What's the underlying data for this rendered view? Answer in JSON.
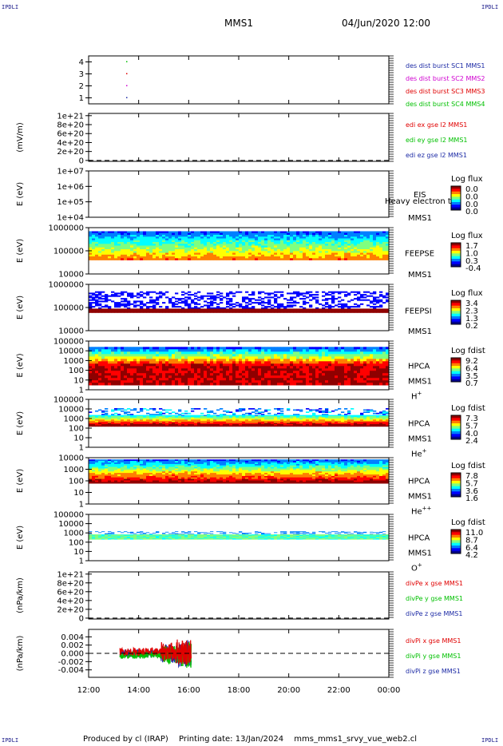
{
  "corners": {
    "tl": "IPDLI",
    "tr": "IPDLI",
    "bl": "IPDLI",
    "br": "IPDLI"
  },
  "header": {
    "spacecraft": "MMS1",
    "datetime": "04/Jun/2020 12:00"
  },
  "footer": {
    "produced_by": "Produced by cl (IRAP)",
    "printing_date": "Printing date: 13/Jan/2024",
    "filename": "mms_mms1_srvy_vue_web2.cl"
  },
  "colors": {
    "blue": "#1c2aa5",
    "magenta": "#d000d0",
    "red": "#e00000",
    "green": "#00c000",
    "grid": "#000000"
  },
  "time_axis": {
    "ticks": [
      "12:00",
      "14:00",
      "16:00",
      "18:00",
      "20:00",
      "22:00",
      "00:00"
    ],
    "range_hours": [
      0,
      12
    ]
  },
  "chart_data": [
    {
      "id": "burst",
      "type": "scatter",
      "ylabel": "",
      "ylim": [
        0.5,
        4.5
      ],
      "yticks": [
        "1",
        "2",
        "3",
        "4"
      ],
      "ytick_values": [
        1,
        2,
        3,
        4
      ],
      "series": [
        {
          "name": "des dist burst SC1 MMS1",
          "color": "#1c2aa5",
          "x": [
            1.5
          ],
          "y": [
            1
          ]
        },
        {
          "name": "des dist burst SC2 MMS2",
          "color": "#d000d0",
          "x": [
            1.5
          ],
          "y": [
            2
          ]
        },
        {
          "name": "des dist burst SC3 MMS3",
          "color": "#e00000",
          "x": [
            1.5
          ],
          "y": [
            3
          ]
        },
        {
          "name": "des dist burst SC4 MMS4",
          "color": "#00c000",
          "x": [
            1.5
          ],
          "y": [
            4
          ]
        }
      ]
    },
    {
      "id": "edi",
      "type": "line",
      "ylabel": "(mV/m)",
      "yticks": [
        "0",
        "2e+20",
        "4e+20",
        "6e+20",
        "8e+20",
        "1e+21"
      ],
      "ytick_values": [
        0,
        2e+20,
        4e+20,
        6e+20,
        8e+20,
        1e+21
      ],
      "ylim": [
        -2e+19,
        1.05e+21
      ],
      "zero_line": true,
      "series": [
        {
          "name": "edi ex gse l2 MMS1",
          "color": "#e00000"
        },
        {
          "name": "edi ey gse l2 MMS1",
          "color": "#00c000"
        },
        {
          "name": "edi ez gse l2 MMS1",
          "color": "#1c2aa5"
        }
      ]
    },
    {
      "id": "eis",
      "type": "heatmap",
      "ylabel": "E (eV)",
      "scale": "log",
      "yticks": [
        "1e+04",
        "1e+05",
        "1e+06",
        "1e+07"
      ],
      "ytick_values": [
        10000,
        100000,
        1000000,
        10000000
      ],
      "ylim": [
        10000,
        10000000
      ],
      "instrument": "EIS",
      "overlap_label": "Heavy electron to",
      "spacecraft": "MMS1",
      "colorbar": {
        "title": "Log flux",
        "values": [
          "0.0",
          "0.0",
          "0.0",
          "0.0"
        ]
      }
    },
    {
      "id": "feepse",
      "type": "heatmap",
      "ylabel": "E (eV)",
      "scale": "log",
      "yticks": [
        "10000",
        "100000",
        "1000000"
      ],
      "ytick_values": [
        10000,
        100000,
        1000000
      ],
      "ylim": [
        10000,
        1000000
      ],
      "instrument": "FEEPSE",
      "spacecraft": "MMS1",
      "data_time_range": [
        0,
        12
      ],
      "data_energy_range": [
        40000,
        700000
      ],
      "colorbar": {
        "title": "Log flux",
        "values": [
          "1.7",
          "1.0",
          "0.3",
          "-0.4"
        ]
      }
    },
    {
      "id": "feepsi",
      "type": "heatmap",
      "ylabel": "E (eV)",
      "scale": "log",
      "yticks": [
        "10000",
        "100000",
        "1000000"
      ],
      "ytick_values": [
        10000,
        100000,
        1000000
      ],
      "ylim": [
        10000,
        1000000
      ],
      "instrument": "FEEPSI",
      "spacecraft": "MMS1",
      "data_time_range": [
        0,
        12
      ],
      "data_energy_range": [
        60000,
        500000
      ],
      "colorbar": {
        "title": "Log flux",
        "values": [
          "3.4",
          "2.3",
          "1.3",
          "0.2"
        ]
      }
    },
    {
      "id": "hpca_h",
      "type": "heatmap",
      "ylabel": "E (eV)",
      "scale": "log",
      "yticks": [
        "1",
        "10",
        "100",
        "1000",
        "10000",
        "100000"
      ],
      "ytick_values": [
        1,
        10,
        100,
        1000,
        10000,
        100000
      ],
      "ylim": [
        1,
        100000
      ],
      "instrument": "HPCA",
      "spacecraft": "MMS1",
      "species": "H",
      "species_charge": "+",
      "data_time_range": [
        0,
        12
      ],
      "data_energy_range": [
        3,
        25000
      ],
      "colorbar": {
        "title": "Log fdist",
        "values": [
          "9.2",
          "6.4",
          "3.5",
          "0.7"
        ]
      }
    },
    {
      "id": "hpca_he",
      "type": "heatmap",
      "ylabel": "E (eV)",
      "scale": "log",
      "yticks": [
        "1",
        "10",
        "100",
        "1000",
        "10000",
        "100000"
      ],
      "ytick_values": [
        1,
        10,
        100,
        1000,
        10000,
        100000
      ],
      "ylim": [
        1,
        100000
      ],
      "instrument": "HPCA",
      "spacecraft": "MMS1",
      "species": "He",
      "species_charge": "+",
      "data_time_range": [
        0,
        12
      ],
      "data_energy_range": [
        150,
        12000
      ],
      "colorbar": {
        "title": "Log fdist",
        "values": [
          "7.3",
          "5.7",
          "4.0",
          "2.4"
        ]
      }
    },
    {
      "id": "hpca_he2",
      "type": "heatmap",
      "ylabel": "E (eV)",
      "scale": "log",
      "yticks": [
        "1",
        "10",
        "100",
        "1000",
        "10000"
      ],
      "ytick_values": [
        1,
        10,
        100,
        1000,
        10000
      ],
      "ylim": [
        1,
        10000
      ],
      "instrument": "HPCA",
      "spacecraft": "MMS1",
      "species": "He",
      "species_charge": "++",
      "data_time_range": [
        0,
        12
      ],
      "data_energy_range": [
        60,
        7000
      ],
      "colorbar": {
        "title": "Log fdist",
        "values": [
          "7.8",
          "5.7",
          "3.6",
          "1.6"
        ]
      }
    },
    {
      "id": "hpca_o",
      "type": "heatmap",
      "ylabel": "E (eV)",
      "scale": "log",
      "yticks": [
        "1",
        "10",
        "100",
        "1000",
        "10000",
        "100000"
      ],
      "ytick_values": [
        1,
        10,
        100,
        1000,
        10000,
        100000
      ],
      "ylim": [
        1,
        100000
      ],
      "instrument": "HPCA",
      "spacecraft": "MMS1",
      "species": "O",
      "species_charge": "+",
      "data_time_range": [
        0,
        12
      ],
      "data_energy_range": [
        200,
        1500
      ],
      "colorbar": {
        "title": "Log fdist",
        "values": [
          "11.0",
          "8.7",
          "6.4",
          "4.2"
        ]
      }
    },
    {
      "id": "divpe",
      "type": "line",
      "ylabel": "(nPa/km)",
      "yticks": [
        "0",
        "2e+20",
        "4e+20",
        "6e+20",
        "8e+20",
        "1e+21"
      ],
      "ytick_values": [
        0,
        2e+20,
        4e+20,
        6e+20,
        8e+20,
        1e+21
      ],
      "ylim": [
        -2e+19,
        1.05e+21
      ],
      "zero_line": true,
      "series": [
        {
          "name": "divPe x gse MMS1",
          "color": "#e00000"
        },
        {
          "name": "divPe y gse MMS1",
          "color": "#00c000"
        },
        {
          "name": "divPe z gse MMS1",
          "color": "#1c2aa5"
        }
      ]
    },
    {
      "id": "divpi",
      "type": "line",
      "ylabel": "(nPa/km)",
      "yticks": [
        "-0.004",
        "-0.002",
        "0.000",
        "0.002",
        "0.004"
      ],
      "ytick_values": [
        -0.004,
        -0.002,
        0,
        0.002,
        0.004
      ],
      "ylim": [
        -0.0058,
        0.0058
      ],
      "zero_line": true,
      "data_time_range": [
        1.25,
        4.1
      ],
      "series": [
        {
          "name": "divPi x gse MMS1",
          "color": "#e00000"
        },
        {
          "name": "divPi y gse MMS1",
          "color": "#00c000"
        },
        {
          "name": "divPi z gse MMS1",
          "color": "#1c2aa5"
        }
      ]
    }
  ]
}
